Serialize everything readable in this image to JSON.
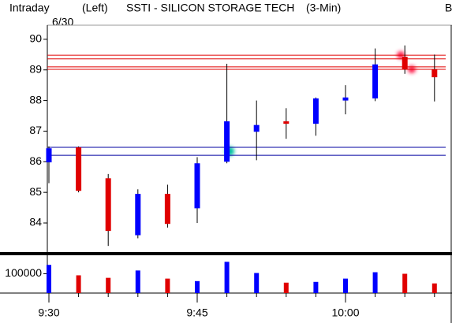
{
  "header": {
    "mode": "Intraday",
    "side": "(Left)",
    "title": "SSTI - SILICON STORAGE TECH",
    "interval": "(3-Min)",
    "extra": "B",
    "date": "6/30"
  },
  "chart_data": [
    {
      "type": "candlestick",
      "open": [
        85.98,
        86.47,
        85.46,
        83.6,
        84.95,
        84.48,
        86.0,
        86.98,
        87.32,
        87.24,
        88.0,
        88.07,
        89.43,
        89.02
      ],
      "high": [
        86.5,
        86.5,
        85.6,
        85.1,
        85.25,
        86.15,
        89.2,
        88.0,
        87.75,
        88.1,
        88.5,
        89.7,
        89.8,
        89.5
      ],
      "low": [
        85.3,
        85.0,
        83.25,
        83.5,
        83.85,
        84.0,
        85.95,
        86.05,
        86.75,
        86.85,
        87.55,
        87.98,
        88.87,
        87.97
      ],
      "close": [
        86.44,
        85.05,
        83.74,
        84.95,
        83.97,
        85.95,
        87.32,
        87.2,
        87.24,
        88.07,
        88.1,
        89.18,
        89.02,
        88.76
      ],
      "up_color": "#0000ff",
      "down_color": "#e00000",
      "hlines": [
        {
          "value": 89.48,
          "color": "#e00000"
        },
        {
          "value": 89.36,
          "color": "#e00000"
        },
        {
          "value": 89.1,
          "color": "#e00000"
        },
        {
          "value": 89.02,
          "color": "#e00000"
        },
        {
          "value": 86.47,
          "color": "#0000a0"
        },
        {
          "value": 86.21,
          "color": "#0000a0"
        }
      ],
      "ylim": [
        83.1,
        90.46
      ],
      "yticks": [
        84,
        85,
        86,
        87,
        88,
        89,
        90
      ]
    },
    {
      "type": "bar",
      "categories": [
        "9:30",
        null,
        null,
        null,
        null,
        "9:45",
        null,
        null,
        null,
        null,
        "10:00",
        null,
        null,
        null
      ],
      "values": [
        146000,
        92000,
        79000,
        117000,
        75000,
        62000,
        162000,
        104000,
        54000,
        58000,
        75000,
        108000,
        100000,
        50000
      ],
      "colors": [
        "#0000ff",
        "#e00000",
        "#e00000",
        "#0000ff",
        "#e00000",
        "#0000ff",
        "#0000ff",
        "#0000ff",
        "#e00000",
        "#0000ff",
        "#0000ff",
        "#0000ff",
        "#e00000",
        "#e00000"
      ],
      "ylim": [
        0,
        196000
      ],
      "yticks": [
        100000
      ]
    }
  ]
}
